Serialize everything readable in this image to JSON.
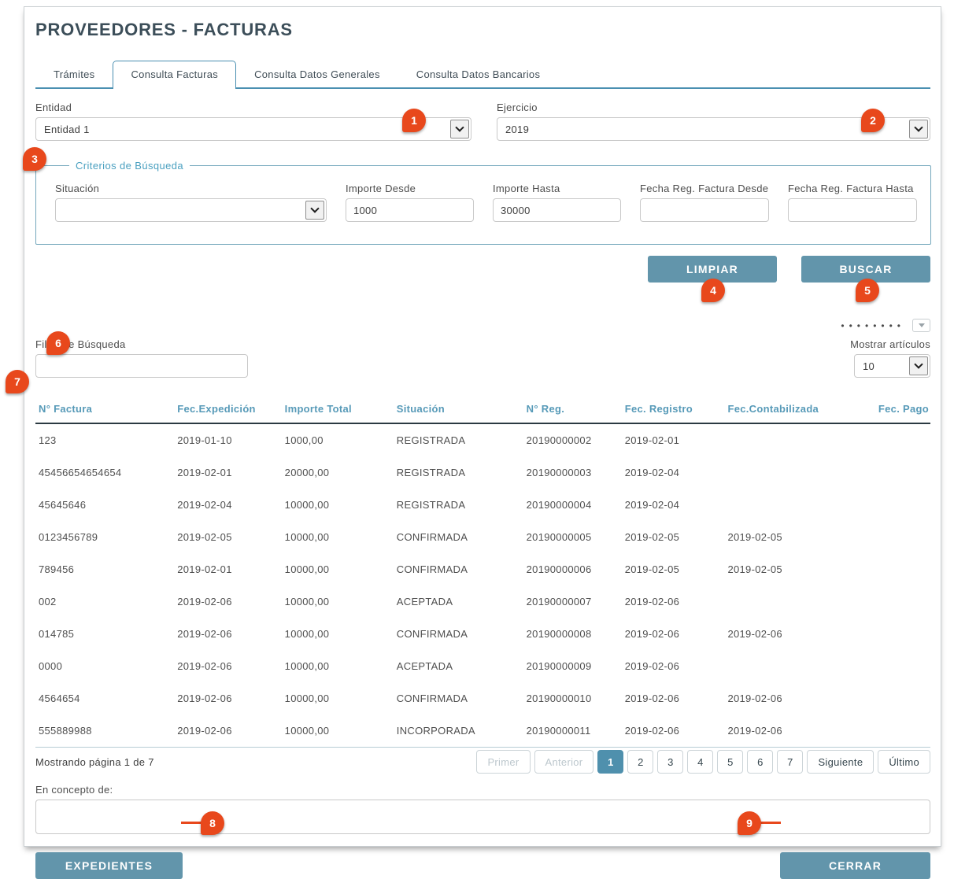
{
  "page": {
    "title": "PROVEEDORES - FACTURAS"
  },
  "tabs": [
    {
      "label": "Trámites",
      "active": false
    },
    {
      "label": "Consulta Facturas",
      "active": true
    },
    {
      "label": "Consulta Datos Generales",
      "active": false
    },
    {
      "label": "Consulta Datos Bancarios",
      "active": false
    }
  ],
  "entity": {
    "label": "Entidad",
    "value": "Entidad 1"
  },
  "exercise": {
    "label": "Ejercicio",
    "value": "2019"
  },
  "criteria": {
    "legend": "Criterios de Búsqueda",
    "situacion": {
      "label": "Situación",
      "value": ""
    },
    "importe_desde": {
      "label": "Importe Desde",
      "value": "1000"
    },
    "importe_hasta": {
      "label": "Importe Hasta",
      "value": "30000"
    },
    "fecha_desde": {
      "label": "Fecha Reg. Factura Desde",
      "value": ""
    },
    "fecha_hasta": {
      "label": "Fecha Reg. Factura Hasta",
      "value": ""
    }
  },
  "actions": {
    "limpiar": "LIMPIAR",
    "buscar": "BUSCAR"
  },
  "filter": {
    "label": "Filtro de Búsqueda",
    "value": ""
  },
  "show_items": {
    "label": "Mostrar artículos",
    "value": "10"
  },
  "table": {
    "columns": [
      "N° Factura",
      "Fec.Expedición",
      "Importe Total",
      "Situación",
      "N° Reg.",
      "Fec. Registro",
      "Fec.Contabilizada",
      "Fec. Pago"
    ],
    "rows": [
      [
        "123",
        "2019-01-10",
        "1000,00",
        "REGISTRADA",
        "20190000002",
        "2019-02-01",
        "",
        ""
      ],
      [
        "45456654654654",
        "2019-02-01",
        "20000,00",
        "REGISTRADA",
        "20190000003",
        "2019-02-04",
        "",
        ""
      ],
      [
        "45645646",
        "2019-02-04",
        "10000,00",
        "REGISTRADA",
        "20190000004",
        "2019-02-04",
        "",
        ""
      ],
      [
        "0123456789",
        "2019-02-05",
        "10000,00",
        "CONFIRMADA",
        "20190000005",
        "2019-02-05",
        "2019-02-05",
        ""
      ],
      [
        "789456",
        "2019-02-01",
        "10000,00",
        "CONFIRMADA",
        "20190000006",
        "2019-02-05",
        "2019-02-05",
        ""
      ],
      [
        "002",
        "2019-02-06",
        "10000,00",
        "ACEPTADA",
        "20190000007",
        "2019-02-06",
        "",
        ""
      ],
      [
        "014785",
        "2019-02-06",
        "10000,00",
        "CONFIRMADA",
        "20190000008",
        "2019-02-06",
        "2019-02-06",
        ""
      ],
      [
        "0000",
        "2019-02-06",
        "10000,00",
        "ACEPTADA",
        "20190000009",
        "2019-02-06",
        "",
        ""
      ],
      [
        "4564654",
        "2019-02-06",
        "10000,00",
        "CONFIRMADA",
        "20190000010",
        "2019-02-06",
        "2019-02-06",
        ""
      ],
      [
        "555889988",
        "2019-02-06",
        "10000,00",
        "INCORPORADA",
        "20190000011",
        "2019-02-06",
        "2019-02-06",
        ""
      ]
    ]
  },
  "pagination": {
    "summary": "Mostrando página 1 de 7",
    "first": "Primer",
    "prev": "Anterior",
    "pages": [
      "1",
      "2",
      "3",
      "4",
      "5",
      "6",
      "7"
    ],
    "active_page": "1",
    "next": "Siguiente",
    "last": "Último"
  },
  "concept": {
    "label": "En concepto de:",
    "value": ""
  },
  "footer": {
    "expedientes": "EXPEDIENTES",
    "cerrar": "CERRAR"
  },
  "annotations": [
    "1",
    "2",
    "3",
    "4",
    "5",
    "6",
    "7",
    "8",
    "9"
  ],
  "colors": {
    "accent": "#6295ab",
    "annotation": "#e8481c",
    "tab_border": "#4a8fb1",
    "table_header_text": "#579ab8"
  }
}
